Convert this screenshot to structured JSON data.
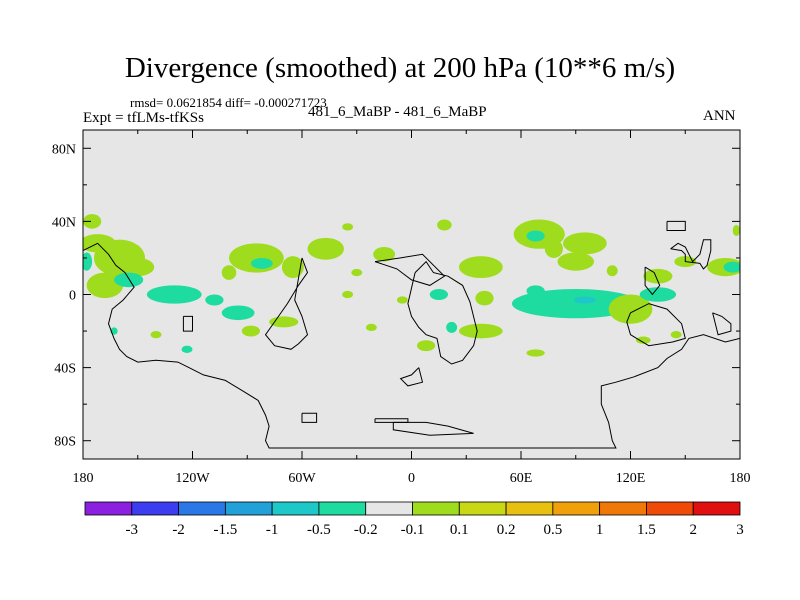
{
  "chart_data": {
    "type": "heatmap",
    "title": "Divergence (smoothed) at 200 hPa (10**6 m/s)",
    "stats_text": "rmsd= 0.0621854  diff= -0.000271723",
    "expt_label": "Expt = tfLMs-tfKSs",
    "case_label": "481_6_MaBP - 481_6_MaBP",
    "season_label": "ANN",
    "background_color": "#e6e6e6",
    "xlim": [
      -180,
      180
    ],
    "ylim": [
      -90,
      90
    ],
    "x_ticks": [
      {
        "value": -180,
        "label": "180"
      },
      {
        "value": -120,
        "label": "120W"
      },
      {
        "value": -60,
        "label": "60W"
      },
      {
        "value": 0,
        "label": "0"
      },
      {
        "value": 60,
        "label": "60E"
      },
      {
        "value": 120,
        "label": "120E"
      },
      {
        "value": 180,
        "label": "180"
      }
    ],
    "y_ticks": [
      {
        "value": 80,
        "label": "80N"
      },
      {
        "value": 40,
        "label": "40N"
      },
      {
        "value": 0,
        "label": "0"
      },
      {
        "value": -40,
        "label": "40S"
      },
      {
        "value": -80,
        "label": "80S"
      }
    ],
    "colorbar": {
      "colors": [
        "#8c20e0",
        "#3c3cf0",
        "#2a78e8",
        "#22a0d8",
        "#1ec8c8",
        "#1edca0",
        "#e6e6e6",
        "#a0dc1e",
        "#c8d814",
        "#e8c010",
        "#f0a00a",
        "#f07808",
        "#f04a08",
        "#e01010"
      ],
      "labels": [
        "-3",
        "-2",
        "-1.5",
        "-1",
        "-0.5",
        "-0.2",
        "-0.1",
        "0.1",
        "0.2",
        "0.5",
        "1",
        "1.5",
        "2",
        "3"
      ]
    },
    "blobs": [
      {
        "lon": -172,
        "lat": 28,
        "rx": 10,
        "ry": 5,
        "color": "#a0dc1e"
      },
      {
        "lon": -160,
        "lat": 20,
        "rx": 14,
        "ry": 10,
        "color": "#a0dc1e"
      },
      {
        "lon": -168,
        "lat": 5,
        "rx": 10,
        "ry": 7,
        "color": "#a0dc1e"
      },
      {
        "lon": -150,
        "lat": 15,
        "rx": 9,
        "ry": 5,
        "color": "#a0dc1e"
      },
      {
        "lon": -175,
        "lat": 40,
        "rx": 5,
        "ry": 4,
        "color": "#a0dc1e"
      },
      {
        "lon": -178,
        "lat": 18,
        "rx": 3,
        "ry": 5,
        "color": "#1edca0"
      },
      {
        "lon": -155,
        "lat": 8,
        "rx": 8,
        "ry": 4,
        "color": "#1edca0"
      },
      {
        "lon": -130,
        "lat": 0,
        "rx": 15,
        "ry": 5,
        "color": "#1edca0"
      },
      {
        "lon": -108,
        "lat": -3,
        "rx": 5,
        "ry": 3,
        "color": "#1edca0"
      },
      {
        "lon": -163,
        "lat": -20,
        "rx": 2,
        "ry": 2,
        "color": "#1edca0"
      },
      {
        "lon": -140,
        "lat": -22,
        "rx": 3,
        "ry": 2,
        "color": "#a0dc1e"
      },
      {
        "lon": -123,
        "lat": -30,
        "rx": 3,
        "ry": 2,
        "color": "#1edca0"
      },
      {
        "lon": -85,
        "lat": 20,
        "rx": 15,
        "ry": 8,
        "color": "#a0dc1e"
      },
      {
        "lon": -82,
        "lat": 17,
        "rx": 6,
        "ry": 3,
        "color": "#1edca0"
      },
      {
        "lon": -100,
        "lat": 12,
        "rx": 4,
        "ry": 4,
        "color": "#a0dc1e"
      },
      {
        "lon": -65,
        "lat": 15,
        "rx": 6,
        "ry": 6,
        "color": "#a0dc1e"
      },
      {
        "lon": -47,
        "lat": 25,
        "rx": 10,
        "ry": 6,
        "color": "#a0dc1e"
      },
      {
        "lon": -95,
        "lat": -10,
        "rx": 9,
        "ry": 4,
        "color": "#1edca0"
      },
      {
        "lon": -70,
        "lat": -15,
        "rx": 8,
        "ry": 3,
        "color": "#a0dc1e"
      },
      {
        "lon": -88,
        "lat": -20,
        "rx": 5,
        "ry": 3,
        "color": "#a0dc1e"
      },
      {
        "lon": -35,
        "lat": 0,
        "rx": 3,
        "ry": 2,
        "color": "#a0dc1e"
      },
      {
        "lon": -30,
        "lat": 12,
        "rx": 3,
        "ry": 2,
        "color": "#a0dc1e"
      },
      {
        "lon": -15,
        "lat": 22,
        "rx": 6,
        "ry": 4,
        "color": "#a0dc1e"
      },
      {
        "lon": -22,
        "lat": -18,
        "rx": 3,
        "ry": 2,
        "color": "#a0dc1e"
      },
      {
        "lon": -35,
        "lat": 37,
        "rx": 3,
        "ry": 2,
        "color": "#a0dc1e"
      },
      {
        "lon": -5,
        "lat": -3,
        "rx": 3,
        "ry": 2,
        "color": "#a0dc1e"
      },
      {
        "lon": 18,
        "lat": 38,
        "rx": 4,
        "ry": 3,
        "color": "#a0dc1e"
      },
      {
        "lon": 15,
        "lat": 0,
        "rx": 5,
        "ry": 3,
        "color": "#1edca0"
      },
      {
        "lon": 38,
        "lat": 15,
        "rx": 12,
        "ry": 6,
        "color": "#a0dc1e"
      },
      {
        "lon": 40,
        "lat": -2,
        "rx": 5,
        "ry": 4,
        "color": "#a0dc1e"
      },
      {
        "lon": 38,
        "lat": -20,
        "rx": 12,
        "ry": 4,
        "color": "#a0dc1e"
      },
      {
        "lon": 22,
        "lat": -18,
        "rx": 3,
        "ry": 3,
        "color": "#1edca0"
      },
      {
        "lon": 8,
        "lat": -28,
        "rx": 5,
        "ry": 3,
        "color": "#a0dc1e"
      },
      {
        "lon": 70,
        "lat": 33,
        "rx": 14,
        "ry": 8,
        "color": "#a0dc1e"
      },
      {
        "lon": 68,
        "lat": 32,
        "rx": 5,
        "ry": 3,
        "color": "#1edca0"
      },
      {
        "lon": 95,
        "lat": 28,
        "rx": 12,
        "ry": 6,
        "color": "#a0dc1e"
      },
      {
        "lon": 90,
        "lat": 18,
        "rx": 10,
        "ry": 5,
        "color": "#a0dc1e"
      },
      {
        "lon": 78,
        "lat": 25,
        "rx": 5,
        "ry": 5,
        "color": "#a0dc1e"
      },
      {
        "lon": 90,
        "lat": -5,
        "rx": 35,
        "ry": 8,
        "color": "#1edca0"
      },
      {
        "lon": 95,
        "lat": -3,
        "rx": 6,
        "ry": 2,
        "color": "#1ec8c8"
      },
      {
        "lon": 68,
        "lat": 2,
        "rx": 5,
        "ry": 3,
        "color": "#1edca0"
      },
      {
        "lon": 120,
        "lat": -8,
        "rx": 12,
        "ry": 8,
        "color": "#a0dc1e"
      },
      {
        "lon": 135,
        "lat": 0,
        "rx": 10,
        "ry": 4,
        "color": "#1edca0"
      },
      {
        "lon": 135,
        "lat": 10,
        "rx": 8,
        "ry": 4,
        "color": "#a0dc1e"
      },
      {
        "lon": 150,
        "lat": 18,
        "rx": 6,
        "ry": 3,
        "color": "#a0dc1e"
      },
      {
        "lon": 172,
        "lat": 15,
        "rx": 10,
        "ry": 5,
        "color": "#a0dc1e"
      },
      {
        "lon": 176,
        "lat": 15,
        "rx": 5,
        "ry": 3,
        "color": "#1edca0"
      },
      {
        "lon": 68,
        "lat": -32,
        "rx": 5,
        "ry": 2,
        "color": "#a0dc1e"
      },
      {
        "lon": 127,
        "lat": -25,
        "rx": 4,
        "ry": 2,
        "color": "#a0dc1e"
      },
      {
        "lon": 145,
        "lat": -22,
        "rx": 3,
        "ry": 2,
        "color": "#a0dc1e"
      },
      {
        "lon": 110,
        "lat": 13,
        "rx": 3,
        "ry": 3,
        "color": "#a0dc1e"
      },
      {
        "lon": 178,
        "lat": 35,
        "rx": 2,
        "ry": 3,
        "color": "#a0dc1e"
      }
    ],
    "coastlines": [
      [
        [
          -180,
          24
        ],
        [
          -172,
          28
        ],
        [
          -166,
          22
        ],
        [
          -162,
          16
        ],
        [
          -157,
          12
        ],
        [
          -152,
          4
        ],
        [
          -158,
          -3
        ],
        [
          -164,
          -8
        ],
        [
          -166,
          -16
        ],
        [
          -163,
          -24
        ],
        [
          -160,
          -30
        ],
        [
          -156,
          -34
        ],
        [
          -150,
          -37
        ],
        [
          -140,
          -36
        ],
        [
          -128,
          -37
        ],
        [
          -122,
          -40
        ],
        [
          -114,
          -44
        ],
        [
          -102,
          -47
        ],
        [
          -92,
          -53
        ],
        [
          -84,
          -58
        ],
        [
          -80,
          -66
        ],
        [
          -78,
          -72
        ],
        [
          -80,
          -80
        ],
        [
          -78,
          -84
        ],
        [
          -40,
          -84
        ],
        [
          -2,
          -84
        ],
        [
          40,
          -84
        ],
        [
          80,
          -84
        ],
        [
          112,
          -84
        ],
        [
          110,
          -80
        ],
        [
          108,
          -70
        ],
        [
          104,
          -60
        ],
        [
          104,
          -50
        ],
        [
          112,
          -48
        ],
        [
          122,
          -45
        ],
        [
          135,
          -40
        ],
        [
          140,
          -35
        ],
        [
          148,
          -30
        ],
        [
          152,
          -24
        ],
        [
          160,
          -22
        ],
        [
          172,
          -26
        ],
        [
          180,
          -24
        ]
      ],
      [
        [
          -60,
          20
        ],
        [
          -57,
          12
        ],
        [
          -62,
          5
        ],
        [
          -68,
          -5
        ],
        [
          -75,
          -15
        ],
        [
          -80,
          -22
        ],
        [
          -75,
          -28
        ],
        [
          -66,
          -30
        ],
        [
          -62,
          -27
        ],
        [
          -57,
          -22
        ],
        [
          -60,
          -12
        ],
        [
          -64,
          -3
        ],
        [
          -60,
          20
        ]
      ],
      [
        [
          -125,
          -12
        ],
        [
          -120,
          -12
        ],
        [
          -120,
          -20
        ],
        [
          -125,
          -20
        ],
        [
          -125,
          -12
        ]
      ],
      [
        [
          2,
          12
        ],
        [
          8,
          18
        ],
        [
          12,
          12
        ],
        [
          20,
          10
        ],
        [
          28,
          5
        ],
        [
          32,
          -4
        ],
        [
          36,
          -20
        ],
        [
          34,
          -28
        ],
        [
          28,
          -36
        ],
        [
          22,
          -38
        ],
        [
          16,
          -34
        ],
        [
          14,
          -24
        ],
        [
          8,
          -22
        ],
        [
          4,
          -18
        ],
        [
          0,
          -12
        ],
        [
          -2,
          -5
        ],
        [
          2,
          12
        ]
      ],
      [
        [
          4,
          -40
        ],
        [
          0,
          -44
        ],
        [
          -6,
          -46
        ],
        [
          -2,
          -50
        ],
        [
          6,
          -48
        ],
        [
          4,
          -40
        ]
      ],
      [
        [
          -20,
          18
        ],
        [
          -6,
          20
        ],
        [
          6,
          22
        ],
        [
          18,
          10
        ],
        [
          10,
          5
        ],
        [
          0,
          8
        ],
        [
          -8,
          14
        ],
        [
          -20,
          18
        ]
      ],
      [
        [
          -20,
          -68
        ],
        [
          -2,
          -68
        ],
        [
          -2,
          -70
        ],
        [
          -20,
          -70
        ],
        [
          -20,
          -68
        ]
      ],
      [
        [
          -10,
          -70
        ],
        [
          8,
          -70
        ],
        [
          20,
          -72
        ],
        [
          34,
          -76
        ],
        [
          10,
          -77
        ],
        [
          -10,
          -74
        ],
        [
          -10,
          -70
        ]
      ],
      [
        [
          -60,
          -65
        ],
        [
          -52,
          -65
        ],
        [
          -52,
          -70
        ],
        [
          -60,
          -70
        ],
        [
          -60,
          -65
        ]
      ],
      [
        [
          140,
          40
        ],
        [
          150,
          40
        ],
        [
          150,
          35
        ],
        [
          140,
          35
        ],
        [
          140,
          40
        ]
      ],
      [
        [
          120,
          -10
        ],
        [
          130,
          -5
        ],
        [
          140,
          -8
        ],
        [
          148,
          -16
        ],
        [
          150,
          -24
        ],
        [
          143,
          -26
        ],
        [
          130,
          -28
        ],
        [
          120,
          -22
        ],
        [
          118,
          -15
        ],
        [
          120,
          -10
        ]
      ],
      [
        [
          142,
          25
        ],
        [
          148,
          24
        ],
        [
          150,
          22
        ],
        [
          150,
          18
        ],
        [
          158,
          17
        ],
        [
          160,
          14
        ],
        [
          162,
          16
        ],
        [
          164,
          24
        ],
        [
          164,
          30
        ],
        [
          160,
          30
        ],
        [
          158,
          22
        ],
        [
          154,
          18
        ],
        [
          150,
          26
        ],
        [
          146,
          28
        ],
        [
          142,
          25
        ]
      ],
      [
        [
          128,
          15
        ],
        [
          133,
          12
        ],
        [
          136,
          5
        ],
        [
          132,
          0
        ],
        [
          128,
          5
        ],
        [
          128,
          15
        ]
      ],
      [
        [
          165,
          -10
        ],
        [
          170,
          -12
        ],
        [
          175,
          -16
        ],
        [
          175,
          -20
        ],
        [
          168,
          -22
        ],
        [
          165,
          -10
        ]
      ]
    ]
  }
}
